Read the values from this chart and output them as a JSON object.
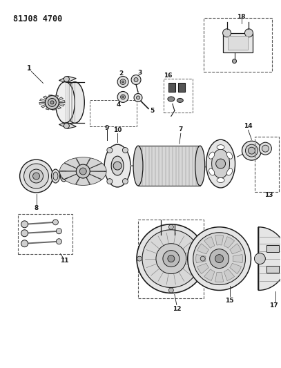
{
  "title": "81J08 4700",
  "bg_color": "#ffffff",
  "fg_color": "#000000",
  "fig_width": 4.07,
  "fig_height": 5.33,
  "dpi": 100
}
